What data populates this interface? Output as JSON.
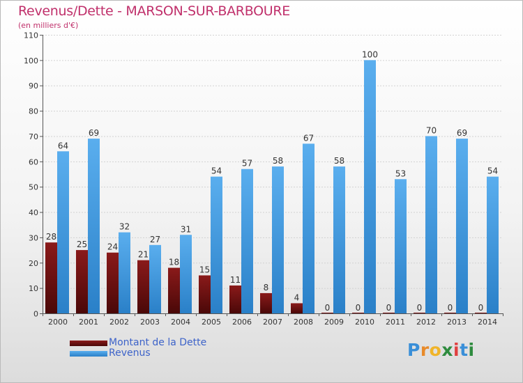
{
  "title": "Revenus/Dette - MARSON-SUR-BARBOURE",
  "subtitle": "(en milliers d'€)",
  "chart_data": {
    "type": "bar",
    "categories": [
      "2000",
      "2001",
      "2002",
      "2003",
      "2004",
      "2005",
      "2006",
      "2007",
      "2008",
      "2009",
      "2010",
      "2011",
      "2012",
      "2013",
      "2014"
    ],
    "series": [
      {
        "name": "Montant de la Dette",
        "color": "#7a1212",
        "values": [
          28,
          25,
          24,
          21,
          18,
          15,
          11,
          8,
          4,
          0,
          0,
          0,
          0,
          0,
          0
        ]
      },
      {
        "name": "Revenus",
        "color": "#4a9ee0",
        "values": [
          64,
          69,
          32,
          27,
          31,
          54,
          57,
          58,
          67,
          58,
          100,
          53,
          70,
          69,
          54
        ]
      }
    ],
    "ylim": [
      0,
      110
    ],
    "yticks": [
      0,
      10,
      20,
      30,
      40,
      50,
      60,
      70,
      80,
      90,
      100,
      110
    ],
    "grid": true,
    "legend": "bottom-left"
  },
  "legend": {
    "debt_label": "Montant de la Dette",
    "revenue_label": "Revenus"
  },
  "logo": {
    "letters": [
      "P",
      "r",
      "o",
      "x",
      "i",
      "t",
      "i"
    ],
    "colors": [
      "#3a8fd8",
      "#e88a2a",
      "#f0b429",
      "#2e8b3e",
      "#e04040",
      "#3a8fd8",
      "#2e8b3e"
    ]
  }
}
